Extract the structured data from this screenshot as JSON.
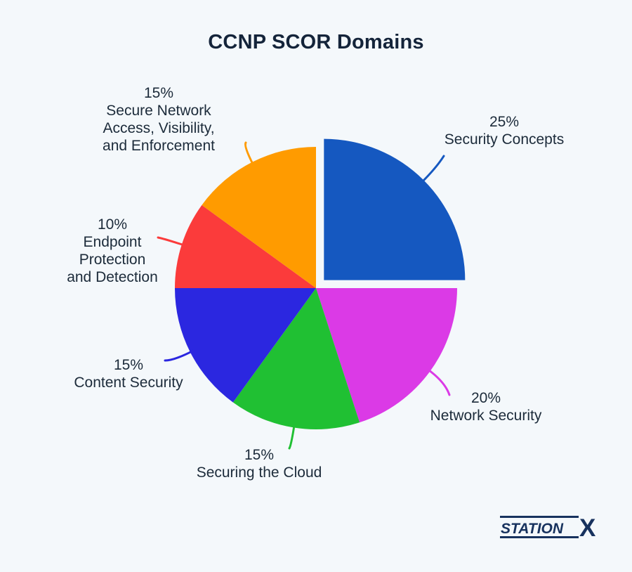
{
  "chart_data": {
    "type": "pie",
    "title": "CCNP SCOR Domains",
    "start_angle_deg": 0,
    "direction": "clockwise",
    "exploded_slice": "Security Concepts",
    "slices": [
      {
        "label": "Security Concepts",
        "value": 25,
        "value_label": "25%",
        "color": "#1558c0"
      },
      {
        "label": "Network Security",
        "value": 20,
        "value_label": "20%",
        "color": "#db3ae6"
      },
      {
        "label": "Securing the Cloud",
        "value": 15,
        "value_label": "15%",
        "color": "#20c033"
      },
      {
        "label": "Content Security",
        "value": 15,
        "value_label": "15%",
        "color": "#2b27e0"
      },
      {
        "label": "Endpoint\nProtection\nand Detection",
        "value": 10,
        "value_label": "10%",
        "color": "#fb3b3b"
      },
      {
        "label": "Secure Network\nAccess, Visibility,\nand Enforcement",
        "value": 15,
        "value_label": "15%",
        "color": "#ff9b00"
      }
    ]
  },
  "brand": {
    "text_left": "STATION",
    "text_right": "X",
    "color": "#17325e"
  }
}
